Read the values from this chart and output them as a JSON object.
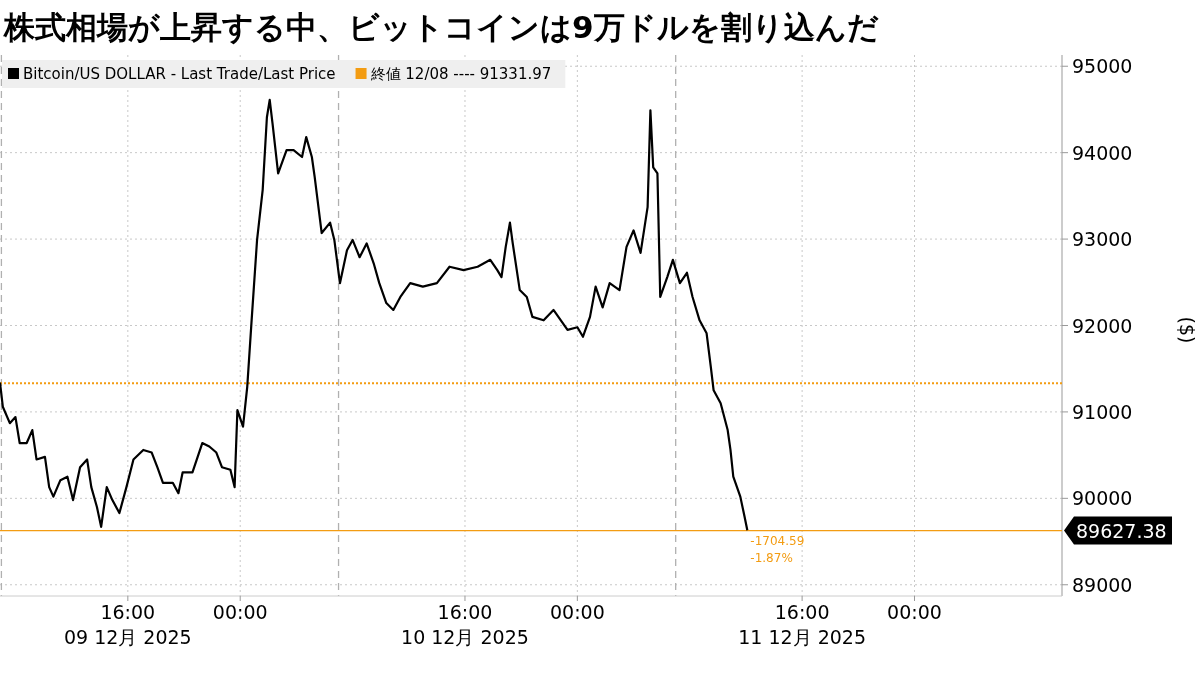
{
  "chart_data": {
    "type": "line",
    "title": "株式相場が上昇する中、ビットコインは9万ドルを割り込んだ",
    "ylabel": "($)",
    "x": [
      "2025-12-09T06:54",
      "2025-12-09T07:06",
      "2025-12-09T07:36",
      "2025-12-09T08:00",
      "2025-12-09T08:18",
      "2025-12-09T08:48",
      "2025-12-09T09:12",
      "2025-12-09T09:30",
      "2025-12-09T10:06",
      "2025-12-09T10:24",
      "2025-12-09T10:42",
      "2025-12-09T11:12",
      "2025-12-09T11:42",
      "2025-12-09T12:06",
      "2025-12-09T12:36",
      "2025-12-09T13:06",
      "2025-12-09T13:24",
      "2025-12-09T13:48",
      "2025-12-09T14:06",
      "2025-12-09T14:30",
      "2025-12-09T14:54",
      "2025-12-09T15:24",
      "2025-12-09T15:54",
      "2025-12-09T16:24",
      "2025-12-09T17:06",
      "2025-12-09T17:42",
      "2025-12-09T18:06",
      "2025-12-09T18:30",
      "2025-12-09T19:12",
      "2025-12-09T19:36",
      "2025-12-09T19:54",
      "2025-12-09T20:36",
      "2025-12-09T21:18",
      "2025-12-09T21:48",
      "2025-12-09T22:18",
      "2025-12-09T22:42",
      "2025-12-09T23:18",
      "2025-12-09T23:36",
      "2025-12-09T23:48",
      "2025-12-10T00:12",
      "2025-12-10T00:30",
      "2025-12-10T00:48",
      "2025-12-10T01:12",
      "2025-12-10T01:36",
      "2025-12-10T01:54",
      "2025-12-10T02:06",
      "2025-12-10T02:18",
      "2025-12-10T02:42",
      "2025-12-10T03:18",
      "2025-12-10T03:48",
      "2025-12-10T04:24",
      "2025-12-10T04:42",
      "2025-12-10T05:06",
      "2025-12-10T05:18",
      "2025-12-10T05:48",
      "2025-12-10T06:24",
      "2025-12-10T06:42",
      "2025-12-10T07:06",
      "2025-12-10T07:36",
      "2025-12-10T08:00",
      "2025-12-10T08:30",
      "2025-12-10T09:00",
      "2025-12-10T09:30",
      "2025-12-10T09:54",
      "2025-12-10T10:24",
      "2025-12-10T10:54",
      "2025-12-10T11:24",
      "2025-12-10T12:06",
      "2025-12-10T13:00",
      "2025-12-10T14:00",
      "2025-12-10T14:54",
      "2025-12-10T15:54",
      "2025-12-10T16:54",
      "2025-12-10T17:48",
      "2025-12-10T18:18",
      "2025-12-10T18:36",
      "2025-12-10T18:54",
      "2025-12-10T19:12",
      "2025-12-10T19:24",
      "2025-12-10T19:54",
      "2025-12-10T20:24",
      "2025-12-10T20:48",
      "2025-12-10T21:36",
      "2025-12-10T22:18",
      "2025-12-10T23:18",
      "2025-12-11T00:00",
      "2025-12-11T00:24",
      "2025-12-11T00:54",
      "2025-12-11T01:18",
      "2025-12-11T01:48",
      "2025-12-11T02:18",
      "2025-12-11T03:00",
      "2025-12-11T03:30",
      "2025-12-11T04:00",
      "2025-12-11T04:30",
      "2025-12-11T05:00",
      "2025-12-11T05:12",
      "2025-12-11T05:24",
      "2025-12-11T05:42",
      "2025-12-11T05:54",
      "2025-12-11T06:24",
      "2025-12-11T06:48",
      "2025-12-11T07:18",
      "2025-12-11T07:48",
      "2025-12-11T08:12",
      "2025-12-11T08:42",
      "2025-12-11T09:12",
      "2025-12-11T09:30",
      "2025-12-11T09:42",
      "2025-12-11T10:12",
      "2025-12-11T10:42",
      "2025-12-11T10:54",
      "2025-12-11T11:06",
      "2025-12-11T11:36",
      "2025-12-11T11:54",
      "2025-12-11T12:06"
    ],
    "series": [
      {
        "name": "Bitcoin/US DOLLAR - Last Trade/Last Price",
        "color": "#000000",
        "values": [
          91340,
          91060,
          90870,
          90940,
          90640,
          90640,
          90790,
          90450,
          90480,
          90130,
          90020,
          90210,
          90250,
          89980,
          90360,
          90450,
          90130,
          89900,
          89670,
          90130,
          89980,
          89830,
          90130,
          90450,
          90560,
          90530,
          90360,
          90180,
          90180,
          90060,
          90300,
          90300,
          90640,
          90600,
          90530,
          90360,
          90330,
          90130,
          91020,
          90830,
          91290,
          92030,
          92990,
          93570,
          94410,
          94610,
          94340,
          93760,
          94030,
          94030,
          93950,
          94180,
          93950,
          93720,
          93070,
          93190,
          92990,
          92490,
          92870,
          92990,
          92790,
          92950,
          92720,
          92490,
          92260,
          92180,
          92330,
          92490,
          92450,
          92490,
          92680,
          92640,
          92680,
          92760,
          92640,
          92560,
          92910,
          93190,
          92950,
          92410,
          92330,
          92100,
          92060,
          92180,
          91950,
          91980,
          91870,
          92100,
          92450,
          92210,
          92490,
          92410,
          92910,
          93100,
          92840,
          93370,
          94490,
          93830,
          93760,
          92330,
          92560,
          92760,
          92490,
          92610,
          92330,
          92060,
          91910,
          91520,
          91250,
          91100,
          90790,
          90560,
          90250,
          90020,
          89790,
          89630
        ]
      }
    ],
    "xlim": [
      "2025-12-09T06:54",
      "2025-12-12T10:30"
    ],
    "ylim": [
      88870,
      95130
    ],
    "xticks": [
      {
        "value": "2025-12-09T16:00",
        "label": "16:00\n09 12月 2025"
      },
      {
        "value": "2025-12-10T00:00",
        "label": "00:00"
      },
      {
        "value": "2025-12-10T16:00",
        "label": "16:00\n10 12月 2025"
      },
      {
        "value": "2025-12-11T00:00",
        "label": "00:00"
      },
      {
        "value": "2025-12-11T16:00",
        "label": "16:00\n11 12月 2025"
      },
      {
        "value": "2025-12-12T00:00",
        "label": "00:00"
      }
    ],
    "yticks": [
      89000,
      90000,
      91000,
      92000,
      93000,
      94000,
      95000
    ],
    "grid": true,
    "legend": "top left",
    "line_style": "solid",
    "ref_lines": [
      {
        "axis": "y",
        "value": 91331.97,
        "label": "終値 12/08 ---- 91331.97",
        "color": "#f39c12",
        "line_style": "dotted"
      },
      {
        "axis": "y",
        "value": 89627.38,
        "label": "89627.38",
        "color": "#f39c12",
        "line_style": "solid"
      },
      {
        "axis": "x",
        "value": "2025-12-09T07:00",
        "color": "#b0b0b0",
        "line_style": "dashed"
      },
      {
        "axis": "x",
        "value": "2025-12-10T07:00",
        "color": "#b0b0b0",
        "line_style": "dashed"
      },
      {
        "axis": "x",
        "value": "2025-12-11T07:00",
        "color": "#b0b0b0",
        "line_style": "dashed"
      }
    ],
    "annotations": [
      {
        "text": "-1704.59",
        "x": "2025-12-11T12:06",
        "y": 89627.38
      },
      {
        "text": "-1.87%",
        "x": "2025-12-11T12:06",
        "y": 89627.38
      }
    ]
  }
}
